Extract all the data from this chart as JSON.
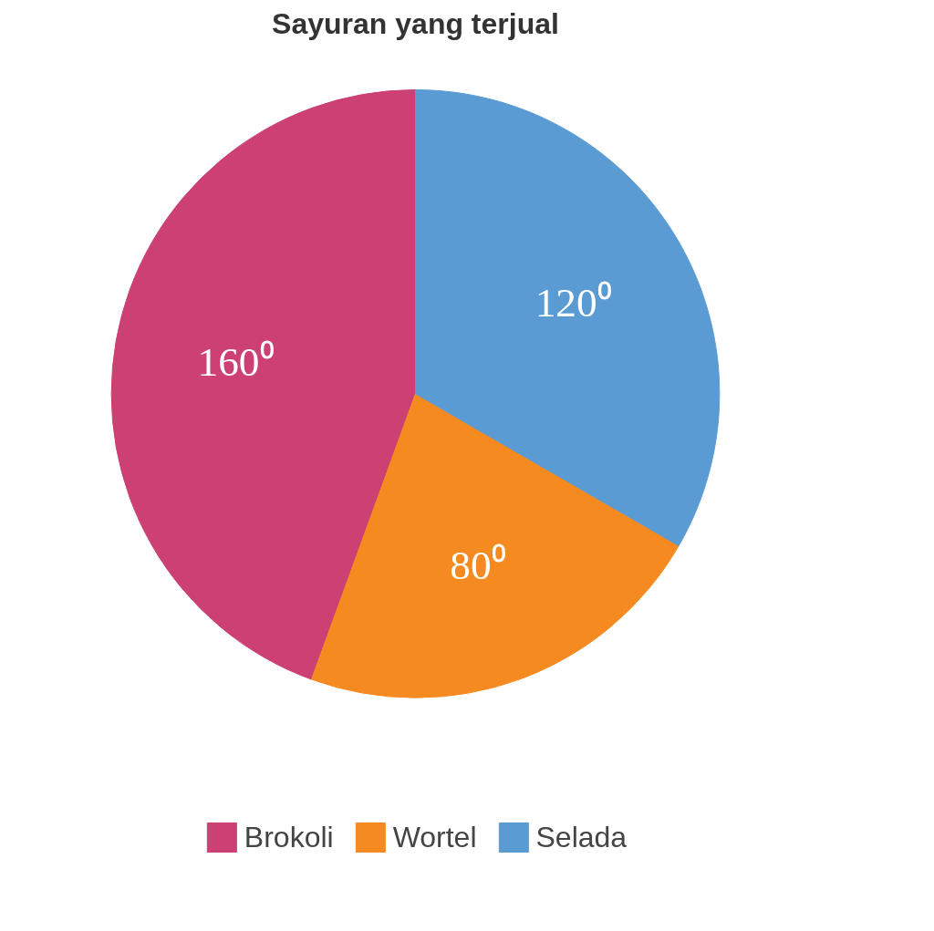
{
  "chart_data": {
    "type": "pie",
    "title": "Sayuran yang terjual",
    "categories": [
      "Brokoli",
      "Wortel",
      "Selada"
    ],
    "values": [
      160,
      80,
      120
    ],
    "colors": [
      "#cc4074",
      "#f58a20",
      "#5b9bd3"
    ],
    "value_labels": [
      "160⁰",
      "80⁰",
      "120⁰"
    ],
    "legend": "bottom"
  }
}
